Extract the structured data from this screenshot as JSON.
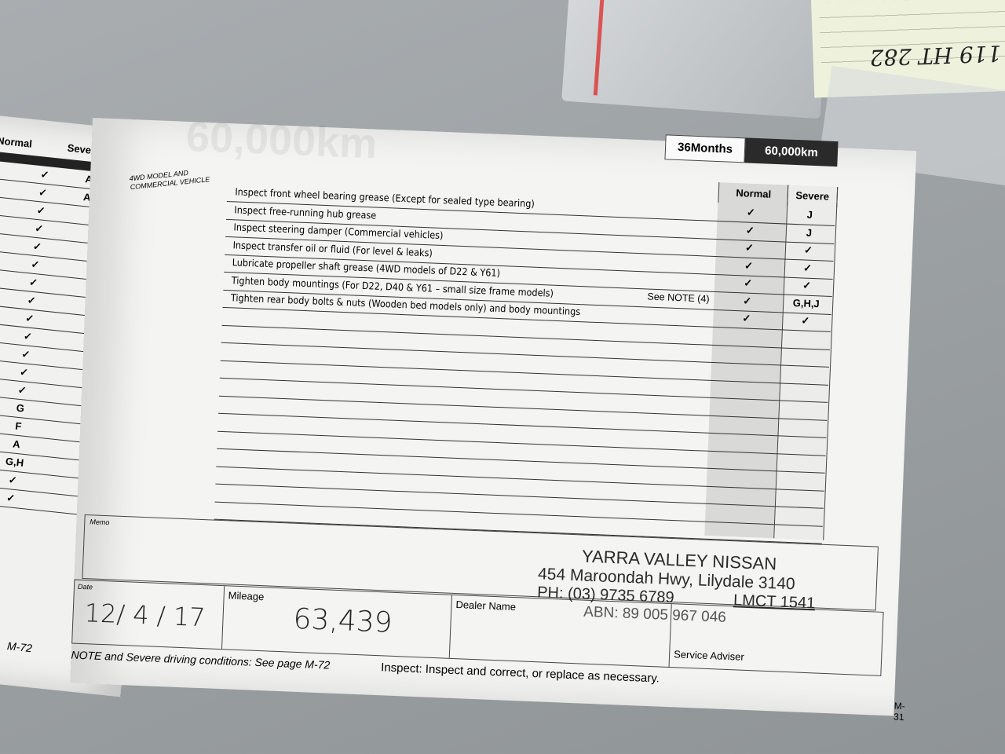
{
  "left_page": {
    "headers": {
      "normal": "Normal",
      "severe": "Severe"
    },
    "normal": [
      "✓",
      "✓",
      "✓",
      "✓",
      "✓",
      "✓",
      "✓",
      "✓",
      "✓",
      "✓",
      "✓",
      "✓",
      "✓",
      "G",
      "F",
      "A",
      "G,H",
      "✓",
      "✓"
    ],
    "severe": [
      "A,C,G,H,I",
      "A,C,G,H,I",
      "✓",
      "✓",
      "✓",
      "✓",
      "✓",
      "✓",
      "✓",
      "✓",
      "✓",
      "",
      "",
      "",
      "",
      "",
      "",
      "",
      ""
    ],
    "page_number": "M-72"
  },
  "right_page": {
    "interval_months": "36Months",
    "interval_km": "60,000km",
    "section_label": "4WD MODEL AND COMMERCIAL VEHICLE",
    "headers": {
      "normal": "Normal",
      "severe": "Severe"
    },
    "items": [
      {
        "text": "Inspect front wheel bearing grease (Except for sealed type bearing)",
        "note": "",
        "normal": "✓",
        "severe": "J"
      },
      {
        "text": "Inspect free-running hub grease",
        "note": "",
        "normal": "✓",
        "severe": "J"
      },
      {
        "text": "Inspect steering damper (Commercial vehicles)",
        "note": "",
        "normal": "✓",
        "severe": "✓"
      },
      {
        "text": "Inspect transfer oil or fluid (For level & leaks)",
        "note": "",
        "normal": "✓",
        "severe": "✓"
      },
      {
        "text": "Lubricate propeller shaft grease (4WD models of D22 & Y61)",
        "note": "",
        "normal": "✓",
        "severe": "✓"
      },
      {
        "text": "Tighten body mountings (For D22, D40 & Y61 – small size frame models)",
        "note": "See NOTE (4)",
        "normal": "✓",
        "severe": "G,H,J"
      },
      {
        "text": "Tighten rear body bolts & nuts (Wooden bed models only) and body mountings",
        "note": "",
        "normal": "✓",
        "severe": "✓"
      }
    ],
    "memo_label": "Memo",
    "stamp": {
      "name": "YARRA VALLEY NISSAN",
      "address": "454 Maroondah Hwy, Lilydale 3140",
      "phone": "PH: (03) 9735 6789",
      "lmct": "LMCT 1541",
      "abn": "ABN: 89 005 967 046"
    },
    "fields": {
      "date_label": "Date",
      "date_value": "12/ 4 / 17",
      "mileage_label": "Mileage",
      "mileage_value": "63,439",
      "dealer_label": "Dealer Name",
      "adviser_label": "Service Adviser"
    },
    "footer_note": "NOTE and Severe driving conditions: See page M-72",
    "footer_inspect": "Inspect: Inspect and correct, or replace as necessary.",
    "page_number": "M-31"
  },
  "background_note": {
    "handwriting": "119 HT 282"
  }
}
